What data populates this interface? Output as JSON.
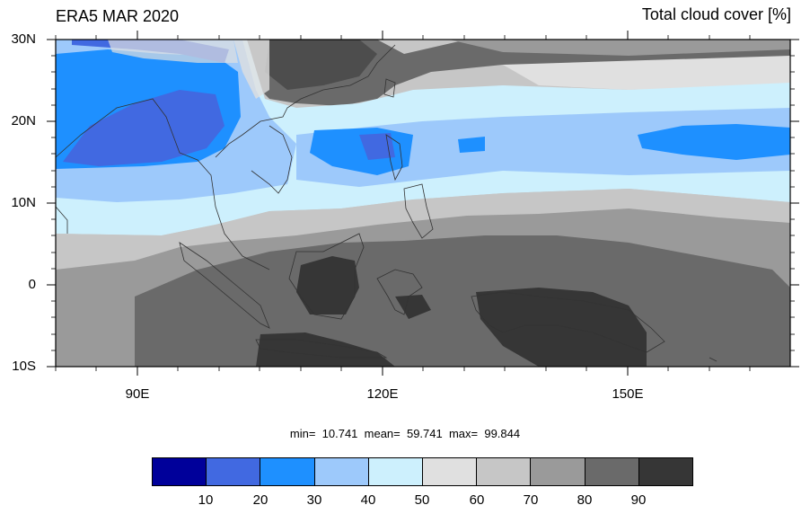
{
  "title_left": "ERA5 MAR 2020",
  "title_right": "Total cloud cover [%]",
  "lat_labels": [
    "30N",
    "20N",
    "10N",
    "0",
    "10S"
  ],
  "lon_labels": [
    "90E",
    "120E",
    "150E"
  ],
  "stats": "min=  10.741  mean=  59.741  max=  99.844",
  "colorbar": {
    "labels": [
      "10",
      "20",
      "30",
      "40",
      "50",
      "60",
      "70",
      "80",
      "90"
    ],
    "colors": [
      "#00009a",
      "#4169e1",
      "#1e90ff",
      "#9dc9fb",
      "#cdf0fd",
      "#e0e0e0",
      "#c6c6c6",
      "#9a9a9a",
      "#6a6a6a",
      "#363636"
    ]
  }
}
